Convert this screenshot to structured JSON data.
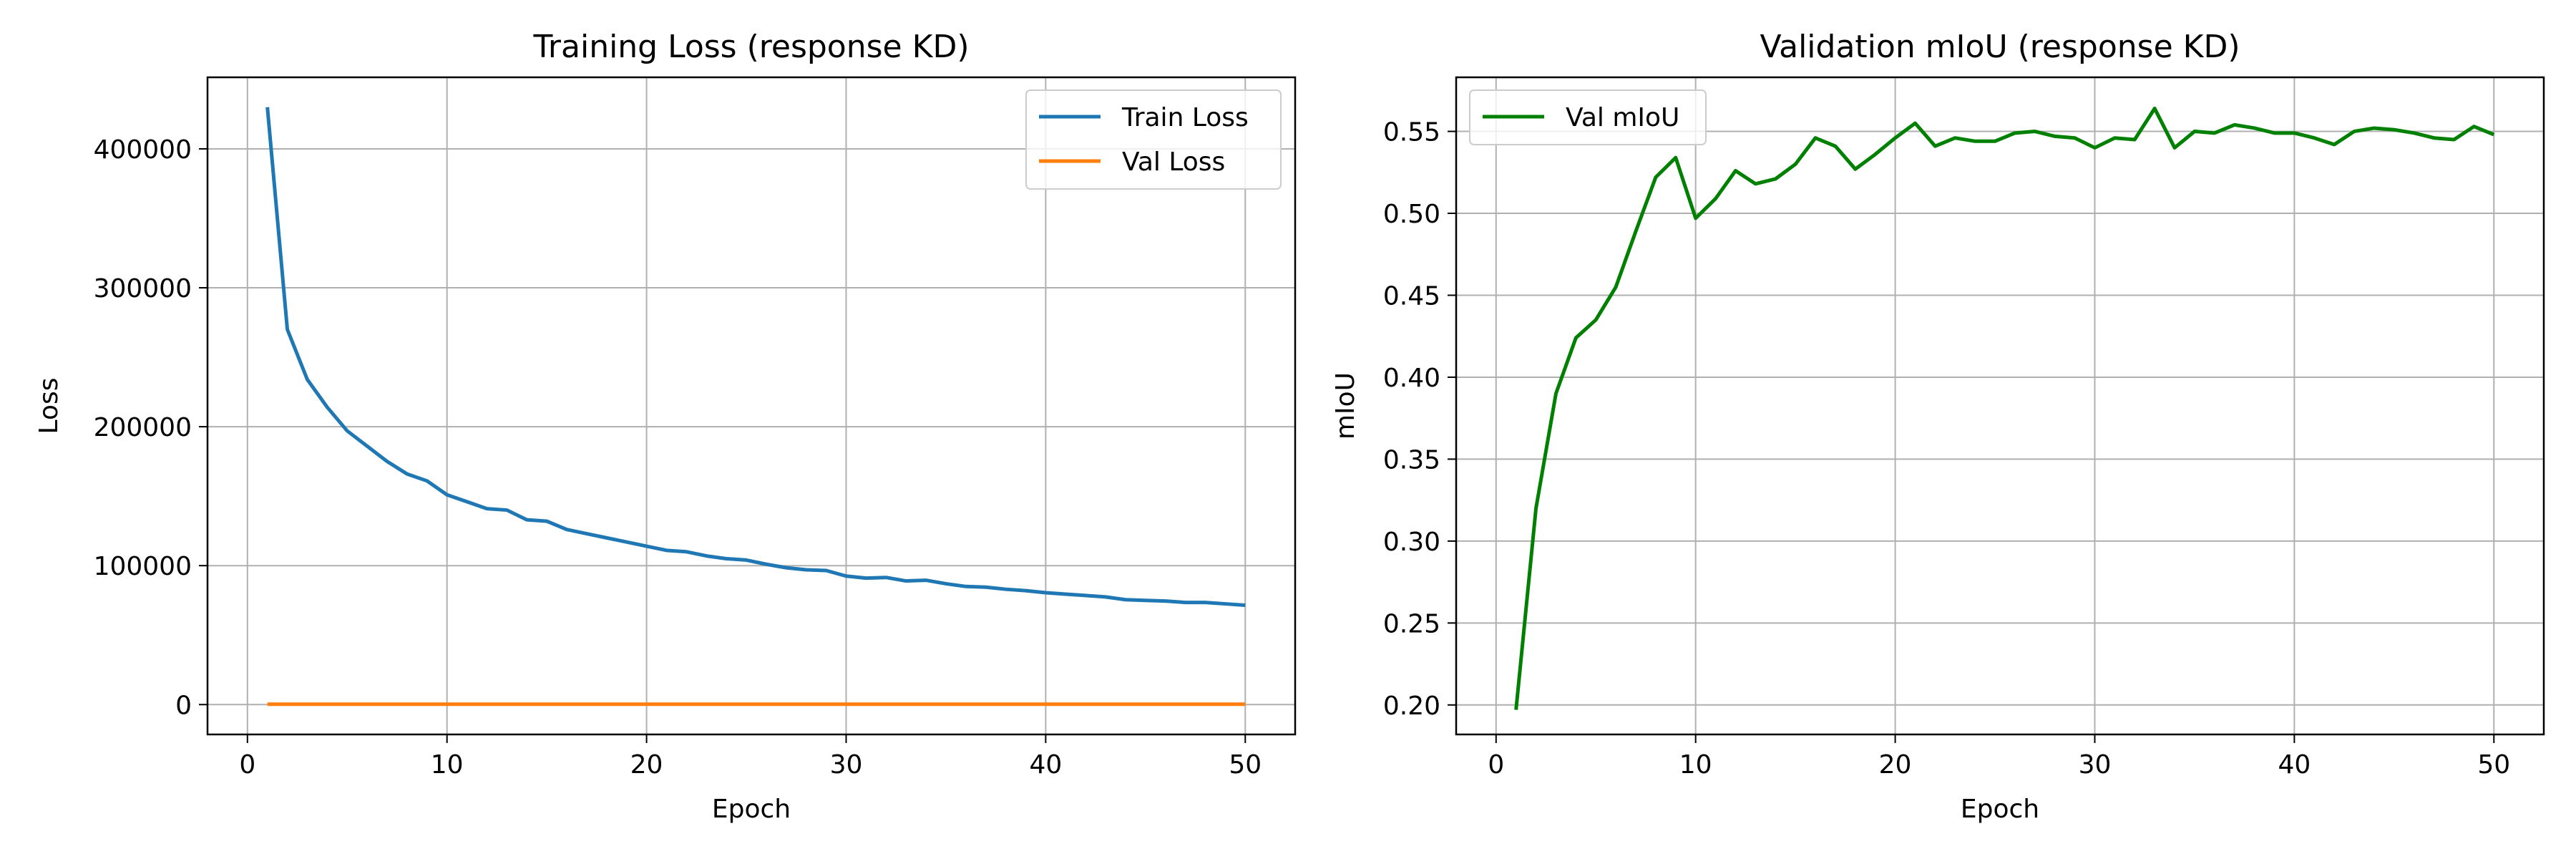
{
  "chart_data": [
    {
      "type": "line",
      "title": "Training Loss (response KD)",
      "xlabel": "Epoch",
      "ylabel": "Loss",
      "xlim": [
        -2,
        52.5
      ],
      "ylim": [
        -21500,
        451500
      ],
      "xticks": [
        0,
        10,
        20,
        30,
        40,
        50
      ],
      "yticks": [
        0,
        100000,
        200000,
        300000,
        400000
      ],
      "grid": true,
      "legend_position": "top-right",
      "x": [
        1,
        2,
        3,
        4,
        5,
        6,
        7,
        8,
        9,
        10,
        11,
        12,
        13,
        14,
        15,
        16,
        17,
        18,
        19,
        20,
        21,
        22,
        23,
        24,
        25,
        26,
        27,
        28,
        29,
        30,
        31,
        32,
        33,
        34,
        35,
        36,
        37,
        38,
        39,
        40,
        41,
        42,
        43,
        44,
        45,
        46,
        47,
        48,
        49,
        50
      ],
      "series": [
        {
          "name": "Train Loss",
          "color": "#1f77b4",
          "values": [
            430000,
            270000,
            234000,
            214000,
            197000,
            186000,
            175000,
            166000,
            161000,
            151000,
            146000,
            141000,
            140000,
            133000,
            132000,
            126000,
            123000,
            120000,
            117000,
            114000,
            111000,
            110000,
            107000,
            105000,
            104000,
            101000,
            98500,
            97000,
            96500,
            92500,
            91000,
            91500,
            89000,
            89500,
            87000,
            85000,
            84500,
            83000,
            82000,
            80500,
            79500,
            78500,
            77500,
            75500,
            75000,
            74500,
            73500,
            73500,
            72500,
            71500
          ]
        },
        {
          "name": "Val Loss",
          "color": "#ff7f0e",
          "values": [
            300,
            300,
            300,
            300,
            300,
            300,
            300,
            300,
            300,
            300,
            300,
            300,
            300,
            300,
            300,
            300,
            300,
            300,
            300,
            300,
            300,
            300,
            300,
            300,
            300,
            300,
            300,
            300,
            300,
            300,
            300,
            300,
            300,
            300,
            300,
            300,
            300,
            300,
            300,
            300,
            300,
            300,
            300,
            300,
            300,
            300,
            300,
            300,
            300,
            300
          ]
        }
      ]
    },
    {
      "type": "line",
      "title": "Validation mIoU (response KD)",
      "xlabel": "Epoch",
      "ylabel": "mIoU",
      "xlim": [
        -2,
        52.5
      ],
      "ylim": [
        0.182,
        0.583
      ],
      "xticks": [
        0,
        10,
        20,
        30,
        40,
        50
      ],
      "yticks": [
        0.2,
        0.25,
        0.3,
        0.35,
        0.4,
        0.45,
        0.5,
        0.55
      ],
      "ytick_labels": [
        "0.20",
        "0.25",
        "0.30",
        "0.35",
        "0.40",
        "0.45",
        "0.50",
        "0.55"
      ],
      "grid": true,
      "legend_position": "top-left",
      "x": [
        1,
        2,
        3,
        4,
        5,
        6,
        7,
        8,
        9,
        10,
        11,
        12,
        13,
        14,
        15,
        16,
        17,
        18,
        19,
        20,
        21,
        22,
        23,
        24,
        25,
        26,
        27,
        28,
        29,
        30,
        31,
        32,
        33,
        34,
        35,
        36,
        37,
        38,
        39,
        40,
        41,
        42,
        43,
        44,
        45,
        46,
        47,
        48,
        49,
        50
      ],
      "series": [
        {
          "name": "Val mIoU",
          "color": "#008000",
          "values": [
            0.197,
            0.32,
            0.39,
            0.424,
            0.435,
            0.455,
            0.489,
            0.522,
            0.534,
            0.497,
            0.509,
            0.526,
            0.518,
            0.521,
            0.53,
            0.546,
            0.541,
            0.527,
            0.536,
            0.546,
            0.555,
            0.541,
            0.546,
            0.544,
            0.544,
            0.549,
            0.55,
            0.547,
            0.546,
            0.54,
            0.546,
            0.545,
            0.564,
            0.54,
            0.55,
            0.549,
            0.554,
            0.552,
            0.549,
            0.549,
            0.546,
            0.542,
            0.55,
            0.552,
            0.551,
            0.549,
            0.546,
            0.545,
            0.553,
            0.548
          ]
        }
      ]
    }
  ]
}
